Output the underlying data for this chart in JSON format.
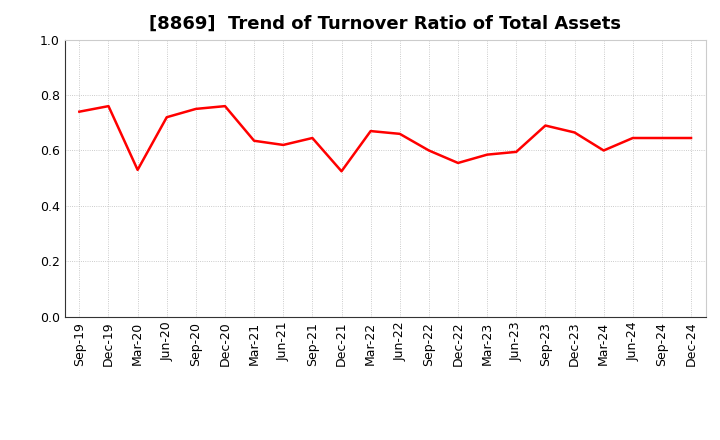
{
  "title": "[8869]  Trend of Turnover Ratio of Total Assets",
  "x_labels": [
    "Sep-19",
    "Dec-19",
    "Mar-20",
    "Jun-20",
    "Sep-20",
    "Dec-20",
    "Mar-21",
    "Jun-21",
    "Sep-21",
    "Dec-21",
    "Mar-22",
    "Jun-22",
    "Sep-22",
    "Dec-22",
    "Mar-23",
    "Jun-23",
    "Sep-23",
    "Dec-23",
    "Mar-24",
    "Jun-24",
    "Sep-24",
    "Dec-24"
  ],
  "y_values": [
    0.74,
    0.76,
    0.53,
    0.72,
    0.75,
    0.76,
    0.635,
    0.62,
    0.645,
    0.525,
    0.67,
    0.66,
    0.6,
    0.555,
    0.585,
    0.595,
    0.69,
    0.665,
    0.6,
    0.645,
    0.645,
    0.645
  ],
  "line_color": "#ff0000",
  "line_width": 1.8,
  "ylim": [
    0.0,
    1.0
  ],
  "yticks": [
    0.0,
    0.2,
    0.4,
    0.6,
    0.8,
    1.0
  ],
  "grid_color": "#bbbbbb",
  "background_color": "#ffffff",
  "title_fontsize": 13,
  "tick_fontsize": 9
}
